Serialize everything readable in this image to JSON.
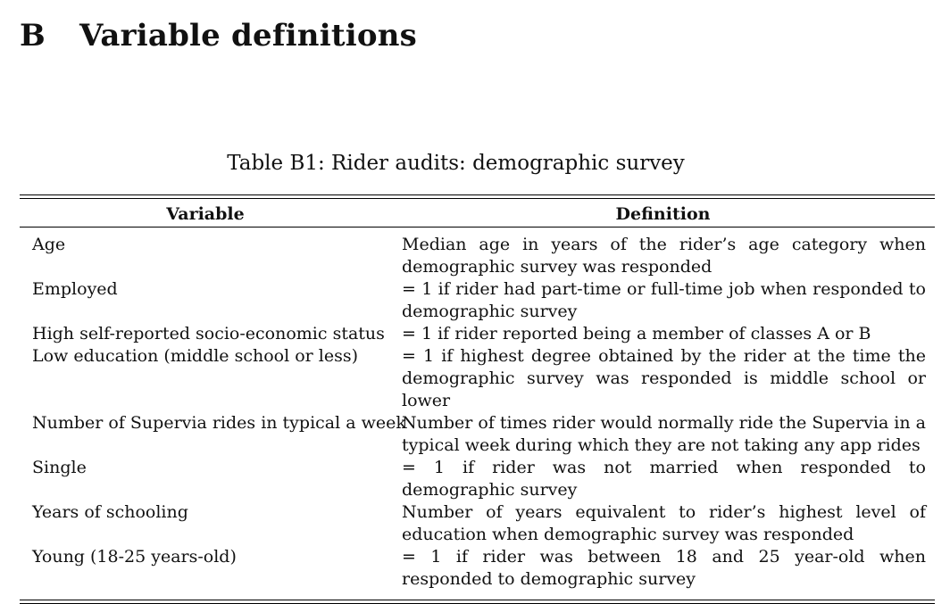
{
  "section": {
    "letter": "B",
    "title": "Variable definitions"
  },
  "table": {
    "caption": "Table B1: Rider audits: demographic survey",
    "headers": [
      "Variable",
      "Definition"
    ],
    "rows": [
      {
        "variable": "Age",
        "definition": "Median age in years of the rider’s age category when demographic survey was responded"
      },
      {
        "variable": "Employed",
        "definition": "= 1 if rider had part-time or full-time job when responded to demographic survey"
      },
      {
        "variable": "High self-reported socio-economic status",
        "definition": "= 1 if rider reported being a member of classes A or B"
      },
      {
        "variable": "Low education (middle school or less)",
        "definition": "= 1 if highest degree obtained by the rider at the time the demographic survey was responded is middle school or lower"
      },
      {
        "variable": "Number of Supervia rides in typical a week",
        "definition": "Number of times rider would normally ride the Supervia in a typical week during which they are not taking any app rides"
      },
      {
        "variable": "Single",
        "definition": "= 1 if rider was not married when responded to demographic survey"
      },
      {
        "variable": "Years of schooling",
        "definition": "Number of years equivalent to rider’s highest level of education when demographic survey was responded"
      },
      {
        "variable": "Young (18-25 years-old)",
        "definition": "= 1 if rider was between 18 and 25 year-old when responded to demographic survey"
      }
    ]
  }
}
